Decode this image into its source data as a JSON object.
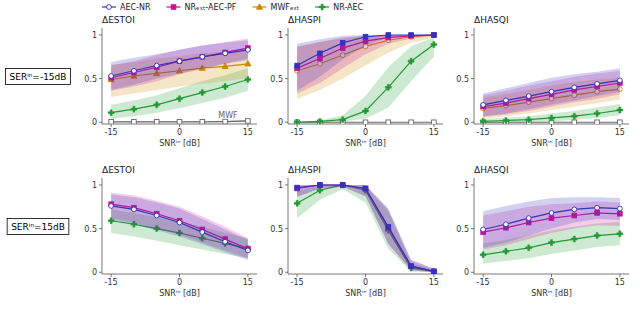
{
  "chart_data": [
    {
      "type": "line",
      "title": "ΔESTOI",
      "x_label": "SNRⁱⁿ [dB]",
      "subtitle": "SERⁱⁿ=-15dB",
      "x": [
        -15,
        -10,
        -5,
        0,
        5,
        10,
        15
      ],
      "xlim": [
        -17,
        17
      ],
      "xticks": [
        -15,
        0,
        15
      ],
      "ylim": [
        -0.02,
        1.08
      ],
      "yticks": [
        0,
        0.5,
        1
      ],
      "grid": false,
      "legend": "top",
      "annotations": [
        {
          "text": "MWF",
          "x": 8.5,
          "y": 0.018
        }
      ],
      "series": [
        {
          "name": "MWF",
          "color": "#666666",
          "marker": "square-open",
          "values": [
            0.005,
            0.005,
            0.005,
            0.005,
            0.005,
            0.008,
            0.015
          ],
          "lower": [
            0.0,
            0.0,
            0.0,
            0.0,
            0.0,
            0.0,
            0.0
          ],
          "upper": [
            0.01,
            0.01,
            0.01,
            0.01,
            0.01,
            0.015,
            0.03
          ]
        },
        {
          "name": "NR-AEC",
          "color": "#229933",
          "marker": "plus",
          "values": [
            0.11,
            0.15,
            0.2,
            0.27,
            0.34,
            0.41,
            0.49
          ],
          "lower": [
            0.04,
            0.07,
            0.11,
            0.16,
            0.22,
            0.28,
            0.36
          ],
          "upper": [
            0.2,
            0.25,
            0.31,
            0.39,
            0.47,
            0.54,
            0.62
          ]
        },
        {
          "name": "MWFₑₓₜ",
          "color": "#cc8800",
          "marker": "triangle",
          "values": [
            0.49,
            0.53,
            0.56,
            0.59,
            0.62,
            0.64,
            0.67
          ],
          "lower": [
            0.29,
            0.33,
            0.37,
            0.41,
            0.44,
            0.47,
            0.51
          ],
          "upper": [
            0.66,
            0.69,
            0.73,
            0.76,
            0.79,
            0.81,
            0.83
          ]
        },
        {
          "name": "NRₑₓₜ-AEC-PF",
          "color": "#cc1199",
          "marker": "square",
          "values": [
            0.51,
            0.57,
            0.63,
            0.7,
            0.75,
            0.8,
            0.85
          ],
          "lower": [
            0.36,
            0.41,
            0.47,
            0.55,
            0.61,
            0.67,
            0.73
          ],
          "upper": [
            0.65,
            0.7,
            0.77,
            0.83,
            0.88,
            0.92,
            0.96
          ]
        },
        {
          "name": "AEC-NR",
          "color": "#3333bb",
          "marker": "circle-open",
          "values": [
            0.53,
            0.59,
            0.65,
            0.7,
            0.75,
            0.79,
            0.83
          ],
          "lower": [
            0.37,
            0.43,
            0.5,
            0.56,
            0.62,
            0.67,
            0.71
          ],
          "upper": [
            0.69,
            0.74,
            0.78,
            0.83,
            0.88,
            0.91,
            0.94
          ]
        }
      ]
    },
    {
      "type": "line",
      "title": "ΔHASPI",
      "x_label": "SNRⁱⁿ [dB]",
      "x": [
        -15,
        -10,
        -5,
        0,
        5,
        10,
        15
      ],
      "xlim": [
        -17,
        17
      ],
      "xticks": [
        -15,
        0,
        15
      ],
      "ylim": [
        -0.02,
        1.08
      ],
      "yticks": [
        0,
        0.5,
        1
      ],
      "grid": false,
      "series": [
        {
          "color": "#666666",
          "marker": "square-open",
          "values": [
            0.0,
            0.0,
            0.0,
            0.0,
            0.0,
            0.0,
            0.0
          ],
          "lower": [
            0.0,
            0.0,
            0.0,
            0.0,
            0.0,
            0.0,
            0.0
          ],
          "upper": [
            0.0,
            0.0,
            0.0,
            0.0,
            0.0,
            0.0,
            0.0
          ]
        },
        {
          "color": "#229933",
          "marker": "plus",
          "values": [
            0.0,
            0.01,
            0.03,
            0.13,
            0.4,
            0.7,
            0.89
          ],
          "lower": [
            0.0,
            0.0,
            0.01,
            0.04,
            0.17,
            0.47,
            0.75
          ],
          "upper": [
            0.01,
            0.02,
            0.08,
            0.3,
            0.63,
            0.87,
            0.97
          ]
        },
        {
          "color": "#cc8800",
          "marker": "circle-open",
          "values": [
            0.59,
            0.67,
            0.77,
            0.87,
            0.94,
            0.98,
            1.0
          ],
          "lower": [
            0.27,
            0.37,
            0.5,
            0.65,
            0.8,
            0.91,
            0.97
          ],
          "upper": [
            0.86,
            0.92,
            0.96,
            0.99,
            1.0,
            1.0,
            1.0
          ]
        },
        {
          "color": "#cc1199",
          "marker": "square",
          "values": [
            0.62,
            0.73,
            0.85,
            0.93,
            0.97,
            0.99,
            1.0
          ],
          "lower": [
            0.33,
            0.45,
            0.62,
            0.78,
            0.9,
            0.96,
            0.99
          ],
          "upper": [
            0.87,
            0.92,
            0.97,
            0.99,
            1.0,
            1.0,
            1.0
          ]
        },
        {
          "color": "#3333bb",
          "marker": "square",
          "values": [
            0.65,
            0.79,
            0.91,
            0.98,
            1.0,
            1.0,
            1.0
          ],
          "lower": [
            0.36,
            0.52,
            0.72,
            0.88,
            0.97,
            0.99,
            1.0
          ],
          "upper": [
            0.9,
            0.95,
            0.99,
            1.0,
            1.0,
            1.0,
            1.0
          ]
        }
      ]
    },
    {
      "type": "line",
      "title": "ΔHASQI",
      "x_label": "SNRⁱⁿ [dB]",
      "x": [
        -15,
        -10,
        -5,
        0,
        5,
        10,
        15
      ],
      "xlim": [
        -17,
        17
      ],
      "xticks": [
        -15,
        0,
        15
      ],
      "ylim": [
        -0.02,
        1.08
      ],
      "yticks": [
        0,
        0.5,
        1
      ],
      "grid": false,
      "series": [
        {
          "color": "#666666",
          "marker": "square-open",
          "values": [
            0.0,
            0.0,
            0.0,
            0.0,
            0.0,
            0.0,
            0.0
          ],
          "lower": [
            0.0,
            0.0,
            0.0,
            0.0,
            0.0,
            0.0,
            0.0
          ],
          "upper": [
            0.0,
            0.0,
            0.0,
            0.0,
            0.0,
            0.0,
            0.0
          ]
        },
        {
          "color": "#229933",
          "marker": "plus",
          "values": [
            0.01,
            0.02,
            0.03,
            0.05,
            0.07,
            0.1,
            0.14
          ],
          "lower": [
            0.0,
            0.0,
            0.01,
            0.01,
            0.03,
            0.05,
            0.08
          ],
          "upper": [
            0.04,
            0.05,
            0.07,
            0.1,
            0.13,
            0.17,
            0.21
          ]
        },
        {
          "color": "#cc8800",
          "marker": "circle-open",
          "values": [
            0.16,
            0.19,
            0.23,
            0.27,
            0.31,
            0.35,
            0.38
          ],
          "lower": [
            0.04,
            0.07,
            0.1,
            0.14,
            0.18,
            0.22,
            0.26
          ],
          "upper": [
            0.28,
            0.32,
            0.37,
            0.42,
            0.46,
            0.49,
            0.51
          ]
        },
        {
          "color": "#cc1199",
          "marker": "square",
          "values": [
            0.18,
            0.22,
            0.27,
            0.32,
            0.37,
            0.41,
            0.45
          ],
          "lower": [
            0.06,
            0.09,
            0.13,
            0.18,
            0.23,
            0.27,
            0.32
          ],
          "upper": [
            0.31,
            0.36,
            0.42,
            0.47,
            0.52,
            0.56,
            0.59
          ]
        },
        {
          "color": "#3333bb",
          "marker": "circle-open",
          "values": [
            0.2,
            0.25,
            0.3,
            0.35,
            0.4,
            0.44,
            0.48
          ],
          "lower": [
            0.07,
            0.1,
            0.15,
            0.2,
            0.25,
            0.3,
            0.35
          ],
          "upper": [
            0.33,
            0.39,
            0.45,
            0.51,
            0.55,
            0.58,
            0.62
          ]
        }
      ]
    },
    {
      "type": "line",
      "title": "ΔESTOI",
      "x_label": "SNRⁱⁿ [dB]",
      "subtitle": "SERⁱⁿ=15dB",
      "x": [
        -15,
        -10,
        -5,
        0,
        5,
        10,
        15
      ],
      "xlim": [
        -17,
        17
      ],
      "xticks": [
        -15,
        0,
        15
      ],
      "ylim": [
        -0.02,
        1.08
      ],
      "yticks": [
        0,
        0.5,
        1
      ],
      "grid": false,
      "series": [
        {
          "color": "#229933",
          "marker": "plus",
          "values": [
            0.59,
            0.55,
            0.5,
            0.45,
            0.39,
            0.33,
            0.27
          ],
          "lower": [
            0.45,
            0.41,
            0.36,
            0.31,
            0.26,
            0.21,
            0.16
          ],
          "upper": [
            0.72,
            0.68,
            0.63,
            0.58,
            0.52,
            0.45,
            0.39
          ]
        },
        {
          "color": "#cc1199",
          "marker": "square",
          "values": [
            0.78,
            0.74,
            0.67,
            0.59,
            0.49,
            0.38,
            0.27
          ],
          "lower": [
            0.62,
            0.57,
            0.5,
            0.43,
            0.34,
            0.25,
            0.16
          ],
          "upper": [
            0.91,
            0.88,
            0.82,
            0.75,
            0.64,
            0.52,
            0.39
          ]
        },
        {
          "color": "#3333bb",
          "marker": "circle-open",
          "values": [
            0.76,
            0.72,
            0.65,
            0.57,
            0.46,
            0.35,
            0.25
          ],
          "lower": [
            0.6,
            0.55,
            0.48,
            0.41,
            0.32,
            0.23,
            0.14
          ],
          "upper": [
            0.89,
            0.86,
            0.8,
            0.73,
            0.61,
            0.49,
            0.37
          ]
        }
      ]
    },
    {
      "type": "line",
      "title": "ΔHASPI",
      "x_label": "SNRⁱⁿ [dB]",
      "x": [
        -15,
        -10,
        -5,
        0,
        5,
        10,
        15
      ],
      "xlim": [
        -17,
        17
      ],
      "xticks": [
        -15,
        0,
        15
      ],
      "ylim": [
        -0.02,
        1.08
      ],
      "yticks": [
        0,
        0.5,
        1
      ],
      "grid": false,
      "series": [
        {
          "color": "#229933",
          "marker": "plus",
          "values": [
            0.79,
            0.94,
            1.0,
            0.94,
            0.48,
            0.05,
            0.01
          ],
          "lower": [
            0.62,
            0.83,
            0.95,
            0.8,
            0.27,
            0.01,
            0.0
          ],
          "upper": [
            0.93,
            0.99,
            1.0,
            0.99,
            0.7,
            0.11,
            0.03
          ]
        },
        {
          "color": "#cc1199",
          "marker": "square",
          "values": [
            0.96,
            1.0,
            1.0,
            0.96,
            0.51,
            0.07,
            0.01
          ],
          "lower": [
            0.86,
            0.96,
            0.98,
            0.87,
            0.32,
            0.02,
            0.0
          ],
          "upper": [
            1.0,
            1.0,
            1.0,
            1.0,
            0.72,
            0.14,
            0.04
          ]
        },
        {
          "color": "#3333bb",
          "marker": "square",
          "values": [
            0.97,
            1.0,
            1.0,
            0.96,
            0.52,
            0.07,
            0.01
          ],
          "lower": [
            0.87,
            0.96,
            0.98,
            0.87,
            0.33,
            0.02,
            0.0
          ],
          "upper": [
            1.0,
            1.0,
            1.0,
            1.0,
            0.73,
            0.14,
            0.04
          ]
        }
      ]
    },
    {
      "type": "line",
      "title": "ΔHASQI",
      "x_label": "SNRⁱⁿ [dB]",
      "x": [
        -15,
        -10,
        -5,
        0,
        5,
        10,
        15
      ],
      "xlim": [
        -17,
        17
      ],
      "xticks": [
        -15,
        0,
        15
      ],
      "ylim": [
        -0.02,
        1.08
      ],
      "yticks": [
        0,
        0.5,
        1
      ],
      "grid": false,
      "series": [
        {
          "color": "#229933",
          "marker": "plus",
          "values": [
            0.2,
            0.24,
            0.28,
            0.34,
            0.38,
            0.42,
            0.44
          ],
          "lower": [
            0.1,
            0.13,
            0.16,
            0.21,
            0.25,
            0.29,
            0.31
          ],
          "upper": [
            0.33,
            0.37,
            0.42,
            0.48,
            0.52,
            0.56,
            0.58
          ]
        },
        {
          "color": "#cc1199",
          "marker": "square",
          "values": [
            0.46,
            0.51,
            0.57,
            0.62,
            0.65,
            0.68,
            0.67
          ],
          "lower": [
            0.26,
            0.31,
            0.38,
            0.45,
            0.5,
            0.54,
            0.53
          ],
          "upper": [
            0.65,
            0.7,
            0.75,
            0.78,
            0.79,
            0.81,
            0.8
          ]
        },
        {
          "color": "#3333bb",
          "marker": "circle-open",
          "values": [
            0.49,
            0.55,
            0.62,
            0.68,
            0.72,
            0.74,
            0.73
          ],
          "lower": [
            0.28,
            0.34,
            0.42,
            0.5,
            0.57,
            0.61,
            0.6
          ],
          "upper": [
            0.7,
            0.76,
            0.81,
            0.85,
            0.86,
            0.86,
            0.85
          ]
        }
      ]
    }
  ]
}
